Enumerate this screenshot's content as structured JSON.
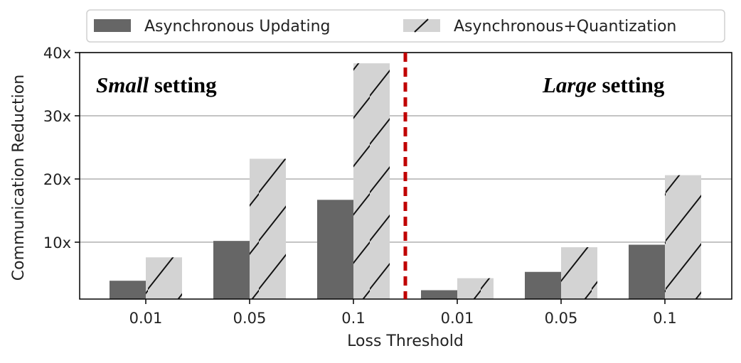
{
  "chart_data": {
    "type": "bar",
    "xlabel": "Loss Threshold",
    "ylabel": "Communication Reduction",
    "ylim": [
      1,
      40
    ],
    "yticks": [
      10,
      20,
      30,
      40
    ],
    "ytick_labels": [
      "10x",
      "20x",
      "30x",
      "40x"
    ],
    "grid": "horizontal",
    "legend_position": "top",
    "categories": [
      "0.01",
      "0.05",
      "0.1",
      "0.01",
      "0.05",
      "0.1"
    ],
    "series": [
      {
        "name": "Asynchronous Updating",
        "values": [
          3.9,
          10.2,
          16.7,
          2.4,
          5.3,
          9.6
        ],
        "color": "#666666",
        "hatch": false
      },
      {
        "name": "Asynchronous+Quantization",
        "values": [
          7.6,
          23.2,
          38.3,
          4.3,
          9.2,
          20.6
        ],
        "color": "#d3d3d3",
        "hatch": true
      }
    ],
    "annotations": [
      {
        "group": "left",
        "italic": "Small",
        "bold": " setting"
      },
      {
        "group": "right",
        "italic": "Large",
        "bold": " setting"
      }
    ],
    "divider": {
      "style": "dashed",
      "color": "#c00000"
    }
  }
}
